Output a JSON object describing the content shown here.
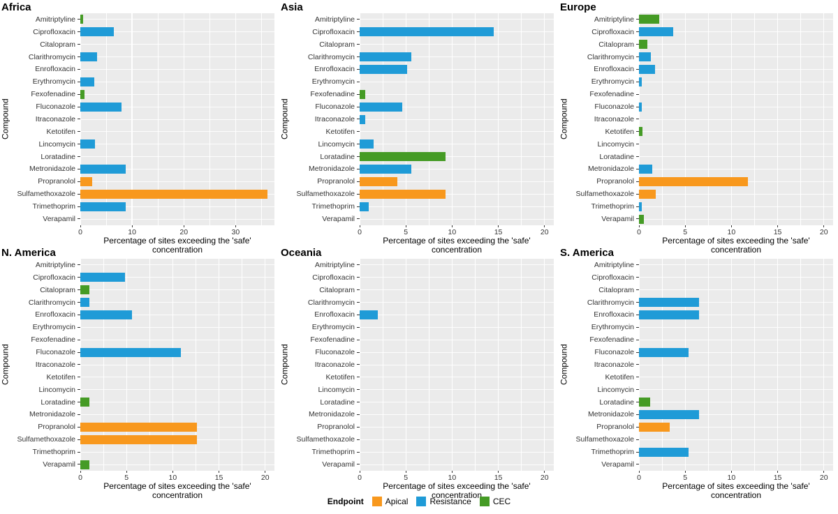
{
  "figure": {
    "xlabel": "Percentage of sites exceeding the 'safe' concentration",
    "ylabel": "Compound",
    "panel_background": "#EBEBEB",
    "endpoint_colors": {
      "Apical": "#F8981D",
      "Resistance": "#1F9BD7",
      "CEC": "#459B25"
    },
    "legend": {
      "title": "Endpoint",
      "position": "bottom-center",
      "entries": [
        {
          "label": "Apical",
          "color": "#F8981D"
        },
        {
          "label": "Resistance",
          "color": "#1F9BD7"
        },
        {
          "label": "CEC",
          "color": "#459B25"
        }
      ]
    }
  },
  "compounds": [
    "Amitriptyline",
    "Ciprofloxacin",
    "Citalopram",
    "Clarithromycin",
    "Enrofloxacin",
    "Erythromycin",
    "Fexofenadine",
    "Fluconazole",
    "Itraconazole",
    "Ketotifen",
    "Lincomycin",
    "Loratadine",
    "Metronidazole",
    "Propranolol",
    "Sulfamethoxazole",
    "Trimethoprim",
    "Verapamil"
  ],
  "chart_data": [
    {
      "type": "bar",
      "orientation": "horizontal",
      "title": "Africa",
      "xlim": [
        0,
        37.5
      ],
      "xticks": [
        0,
        10,
        20,
        30
      ],
      "grid": true,
      "values": [
        0.5,
        6.5,
        0,
        3.2,
        0,
        2.7,
        0.8,
        7.9,
        0,
        0,
        2.9,
        0,
        8.8,
        2.3,
        36.2,
        8.8,
        0
      ],
      "endpoints": [
        "CEC",
        "Resistance",
        null,
        "Resistance",
        null,
        "Resistance",
        "CEC",
        "Resistance",
        null,
        null,
        "Resistance",
        null,
        "Resistance",
        "Apical",
        "Apical",
        "Resistance",
        null
      ]
    },
    {
      "type": "bar",
      "orientation": "horizontal",
      "title": "Asia",
      "xlim": [
        0,
        21
      ],
      "xticks": [
        0,
        5,
        10,
        15,
        20
      ],
      "grid": true,
      "values": [
        0,
        14.5,
        0,
        5.6,
        5.1,
        0,
        0.6,
        4.6,
        0.6,
        0,
        1.5,
        9.3,
        5.6,
        4.1,
        9.3,
        1.0,
        0
      ],
      "endpoints": [
        null,
        "Resistance",
        null,
        "Resistance",
        "Resistance",
        null,
        "CEC",
        "Resistance",
        "Resistance",
        null,
        "Resistance",
        "CEC",
        "Resistance",
        "Apical",
        "Apical",
        "Resistance",
        null
      ]
    },
    {
      "type": "bar",
      "orientation": "horizontal",
      "title": "Europe",
      "xlim": [
        0,
        21
      ],
      "xticks": [
        0,
        5,
        10,
        15,
        20
      ],
      "grid": true,
      "values": [
        2.2,
        3.7,
        0.9,
        1.3,
        1.7,
        0.3,
        0,
        0.3,
        0,
        0.4,
        0,
        0,
        1.4,
        11.8,
        1.8,
        0.3,
        0.5
      ],
      "endpoints": [
        "CEC",
        "Resistance",
        "CEC",
        "Resistance",
        "Resistance",
        "Resistance",
        null,
        "Resistance",
        null,
        "CEC",
        null,
        null,
        "Resistance",
        "Apical",
        "Apical",
        "Resistance",
        "CEC"
      ]
    },
    {
      "type": "bar",
      "orientation": "horizontal",
      "title": "N. America",
      "xlim": [
        0,
        21
      ],
      "xticks": [
        0,
        5,
        10,
        15,
        20
      ],
      "grid": true,
      "values": [
        0,
        4.8,
        1.0,
        1.0,
        5.6,
        0,
        0,
        10.9,
        0,
        0,
        0,
        1.0,
        0,
        12.6,
        12.6,
        0,
        1.0
      ],
      "endpoints": [
        null,
        "Resistance",
        "CEC",
        "Resistance",
        "Resistance",
        null,
        null,
        "Resistance",
        null,
        null,
        null,
        "CEC",
        null,
        "Apical",
        "Apical",
        null,
        "CEC"
      ]
    },
    {
      "type": "bar",
      "orientation": "horizontal",
      "title": "Oceania",
      "xlim": [
        0,
        21
      ],
      "xticks": [
        0,
        5,
        10,
        15,
        20
      ],
      "grid": true,
      "values": [
        0,
        0,
        0,
        0,
        2.0,
        0,
        0,
        0,
        0,
        0,
        0,
        0,
        0,
        0,
        0,
        0,
        0
      ],
      "endpoints": [
        null,
        null,
        null,
        null,
        "Resistance",
        null,
        null,
        null,
        null,
        null,
        null,
        null,
        null,
        null,
        null,
        null,
        null
      ]
    },
    {
      "type": "bar",
      "orientation": "horizontal",
      "title": "S. America",
      "xlim": [
        0,
        21
      ],
      "xticks": [
        0,
        5,
        10,
        15,
        20
      ],
      "grid": true,
      "values": [
        0,
        0,
        0,
        6.5,
        6.5,
        0,
        0,
        5.4,
        0,
        0,
        0,
        1.2,
        6.5,
        3.3,
        0,
        5.4,
        0
      ],
      "endpoints": [
        null,
        null,
        null,
        "Resistance",
        "Resistance",
        null,
        null,
        "Resistance",
        null,
        null,
        null,
        "CEC",
        "Resistance",
        "Apical",
        null,
        "Resistance",
        null
      ]
    }
  ]
}
